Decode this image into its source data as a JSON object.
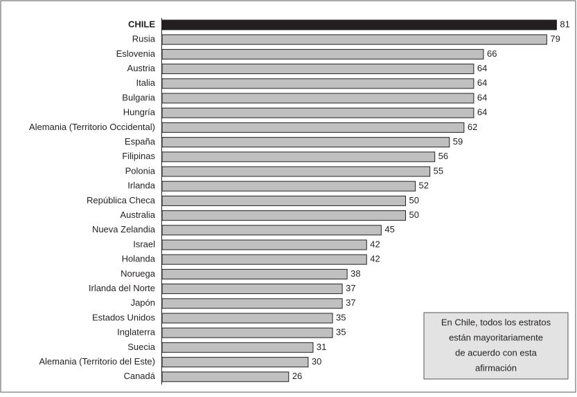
{
  "chart_data": {
    "type": "barh",
    "categories": [
      "CHILE",
      "Rusia",
      "Eslovenia",
      "Austria",
      "Italia",
      "Bulgaria",
      "Hungría",
      "Alemania (Territorio Occidental)",
      "España",
      "Filipinas",
      "Polonia",
      "Irlanda",
      "República Checa",
      "Australia",
      "Nueva Zelandia",
      "Israel",
      "Holanda",
      "Noruega",
      "Irlanda del Norte",
      "Japón",
      "Estados Unidos",
      "Inglaterra",
      "Suecia",
      "Alemania (Territorio del Este)",
      "Canadá"
    ],
    "values": [
      81,
      79,
      66,
      64,
      64,
      64,
      64,
      62,
      59,
      56,
      55,
      52,
      50,
      50,
      45,
      42,
      42,
      38,
      37,
      37,
      35,
      35,
      31,
      30,
      26
    ],
    "color": "#c0c0c0",
    "highlighted": "CHILE",
    "highlight_color": "#231f20",
    "annotation": [
      "En Chile, todos los estratos",
      "están mayoritariamente",
      "de acuerdo con esta",
      "afirmación"
    ]
  }
}
